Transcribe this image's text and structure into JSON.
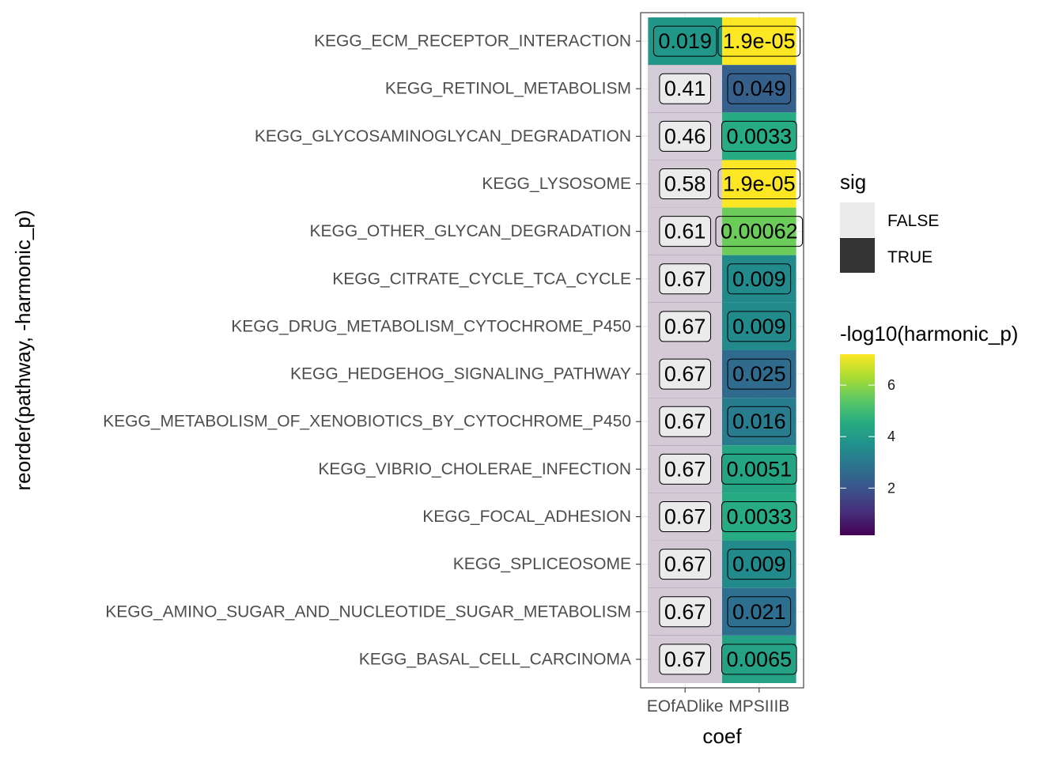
{
  "chart_data": {
    "type": "heatmap",
    "xlabel": "coef",
    "ylabel": "reorder(pathway, -harmonic_p)",
    "x": [
      "EOfADlike",
      "MPSIIIB"
    ],
    "y": [
      "KEGG_ECM_RECEPTOR_INTERACTION",
      "KEGG_RETINOL_METABOLISM",
      "KEGG_GLYCOSAMINOGLYCAN_DEGRADATION",
      "KEGG_LYSOSOME",
      "KEGG_OTHER_GLYCAN_DEGRADATION",
      "KEGG_CITRATE_CYCLE_TCA_CYCLE",
      "KEGG_DRUG_METABOLISM_CYTOCHROME_P450",
      "KEGG_HEDGEHOG_SIGNALING_PATHWAY",
      "KEGG_METABOLISM_OF_XENOBIOTICS_BY_CYTOCHROME_P450",
      "KEGG_VIBRIO_CHOLERAE_INFECTION",
      "KEGG_FOCAL_ADHESION",
      "KEGG_SPLICEOSOME",
      "KEGG_AMINO_SUGAR_AND_NUCLEOTIDE_SUGAR_METABOLISM",
      "KEGG_BASAL_CELL_CARCINOMA"
    ],
    "cells": {
      "EOfADlike": {
        "labels": [
          "0.019",
          "0.41",
          "0.46",
          "0.58",
          "0.61",
          "0.67",
          "0.67",
          "0.67",
          "0.67",
          "0.67",
          "0.67",
          "0.67",
          "0.67",
          "0.67"
        ],
        "neg_log10": [
          3.9,
          0.39,
          0.34,
          0.24,
          0.21,
          0.17,
          0.17,
          0.17,
          0.17,
          0.17,
          0.17,
          0.17,
          0.17,
          0.17
        ],
        "sig": [
          true,
          false,
          false,
          false,
          false,
          false,
          false,
          false,
          false,
          false,
          false,
          false,
          false,
          false
        ]
      },
      "MPSIIIB": {
        "labels": [
          "1.9e-05",
          "0.049",
          "0.0033",
          "1.9e-05",
          "0.00062",
          "0.009",
          "0.009",
          "0.025",
          "0.016",
          "0.0051",
          "0.0033",
          "0.009",
          "0.021",
          "0.0065"
        ],
        "neg_log10": [
          7.2,
          2.3,
          4.5,
          7.2,
          5.6,
          3.5,
          3.5,
          2.6,
          3.1,
          4.3,
          4.5,
          3.5,
          2.7,
          4.2
        ],
        "sig": [
          true,
          true,
          true,
          true,
          true,
          true,
          true,
          true,
          true,
          true,
          true,
          true,
          true,
          true
        ]
      }
    },
    "legends": [
      {
        "title": "sig",
        "entries": [
          "FALSE",
          "TRUE"
        ],
        "colors": [
          "#ebebeb",
          "#333333"
        ]
      },
      {
        "title": "-log10(harmonic_p)",
        "type": "colorbar",
        "palette": "viridis",
        "range": [
          0.17,
          7.2
        ],
        "ticks": [
          "2",
          "4",
          "6"
        ],
        "tick_values": [
          2,
          4,
          6
        ]
      }
    ],
    "grid": true,
    "theme": "bw",
    "legend_position": "right"
  }
}
